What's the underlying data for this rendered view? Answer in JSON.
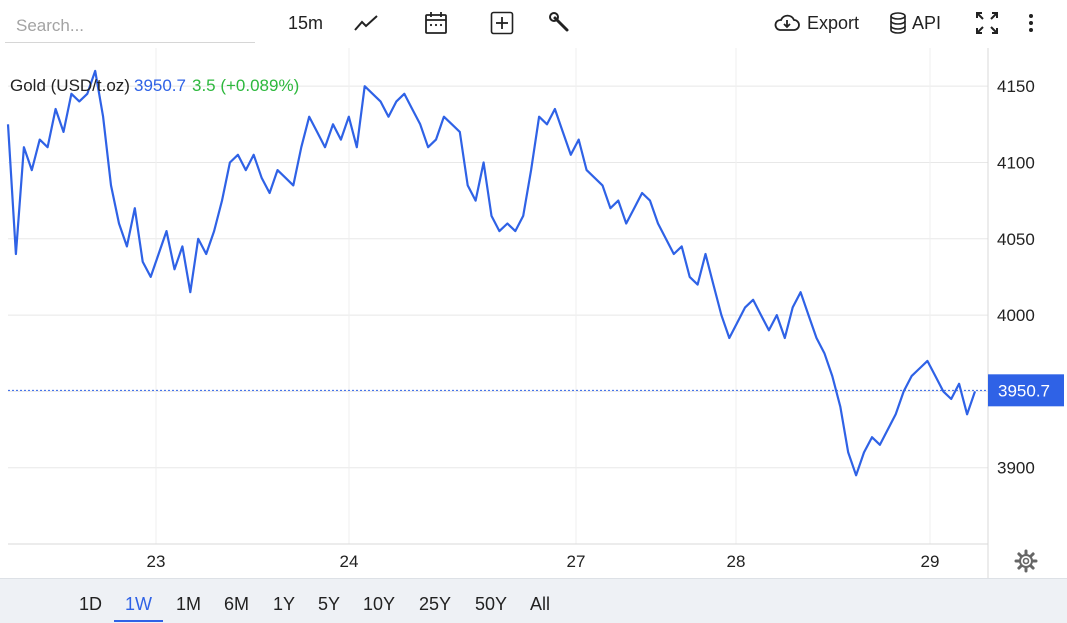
{
  "search": {
    "placeholder": "Search..."
  },
  "toolbar": {
    "interval_label": "15m",
    "export_label": "Export",
    "api_label": "API",
    "icons": [
      "line-chart-icon",
      "calendar-icon",
      "add-icon",
      "wrench-icon",
      "cloud-download-icon",
      "database-icon",
      "fullscreen-icon",
      "more-vertical-icon"
    ]
  },
  "legend": {
    "name": "Gold (USD/t.oz)",
    "price": "3950.7",
    "change": "3.5 (+0.089%)"
  },
  "ranges": [
    "1D",
    "1W",
    "1M",
    "6M",
    "1Y",
    "5Y",
    "10Y",
    "25Y",
    "50Y",
    "All"
  ],
  "active_range": "1W",
  "settings_icon": "gear-icon",
  "colors": {
    "line": "#2f62e6",
    "change_positive": "#2db83d",
    "active_range": "#2f62e6"
  },
  "chart_data": {
    "type": "line",
    "title": "Gold (USD/t.oz)",
    "x_labels": [
      "23",
      "24",
      "27",
      "28",
      "29"
    ],
    "ylim": [
      3850,
      4175
    ],
    "yticks": [
      3900,
      3950,
      4000,
      4050,
      4100,
      4150
    ],
    "ytick_labels": [
      "3900",
      "4000",
      "4050",
      "4100",
      "4150"
    ],
    "last_value": 3950.7,
    "last_value_label": "3950.7",
    "grid": true,
    "series": [
      {
        "name": "Gold (USD/t.oz)",
        "values": [
          4125,
          4040,
          4110,
          4095,
          4115,
          4110,
          4135,
          4120,
          4145,
          4140,
          4145,
          4160,
          4130,
          4085,
          4060,
          4045,
          4070,
          4035,
          4025,
          4040,
          4055,
          4030,
          4045,
          4015,
          4050,
          4040,
          4055,
          4075,
          4100,
          4105,
          4095,
          4105,
          4090,
          4080,
          4095,
          4090,
          4085,
          4110,
          4130,
          4120,
          4110,
          4125,
          4115,
          4130,
          4110,
          4150,
          4145,
          4140,
          4130,
          4140,
          4145,
          4135,
          4125,
          4110,
          4115,
          4130,
          4125,
          4120,
          4085,
          4075,
          4100,
          4065,
          4055,
          4060,
          4055,
          4065,
          4095,
          4130,
          4125,
          4135,
          4120,
          4105,
          4115,
          4095,
          4090,
          4085,
          4070,
          4075,
          4060,
          4070,
          4080,
          4075,
          4060,
          4050,
          4040,
          4045,
          4025,
          4020,
          4040,
          4020,
          4000,
          3985,
          3995,
          4005,
          4010,
          4000,
          3990,
          4000,
          3985,
          4005,
          4015,
          4000,
          3985,
          3975,
          3960,
          3940,
          3910,
          3895,
          3910,
          3920,
          3915,
          3925,
          3935,
          3950,
          3960,
          3965,
          3970,
          3960,
          3950,
          3945,
          3955,
          3935,
          3950
        ]
      }
    ]
  }
}
